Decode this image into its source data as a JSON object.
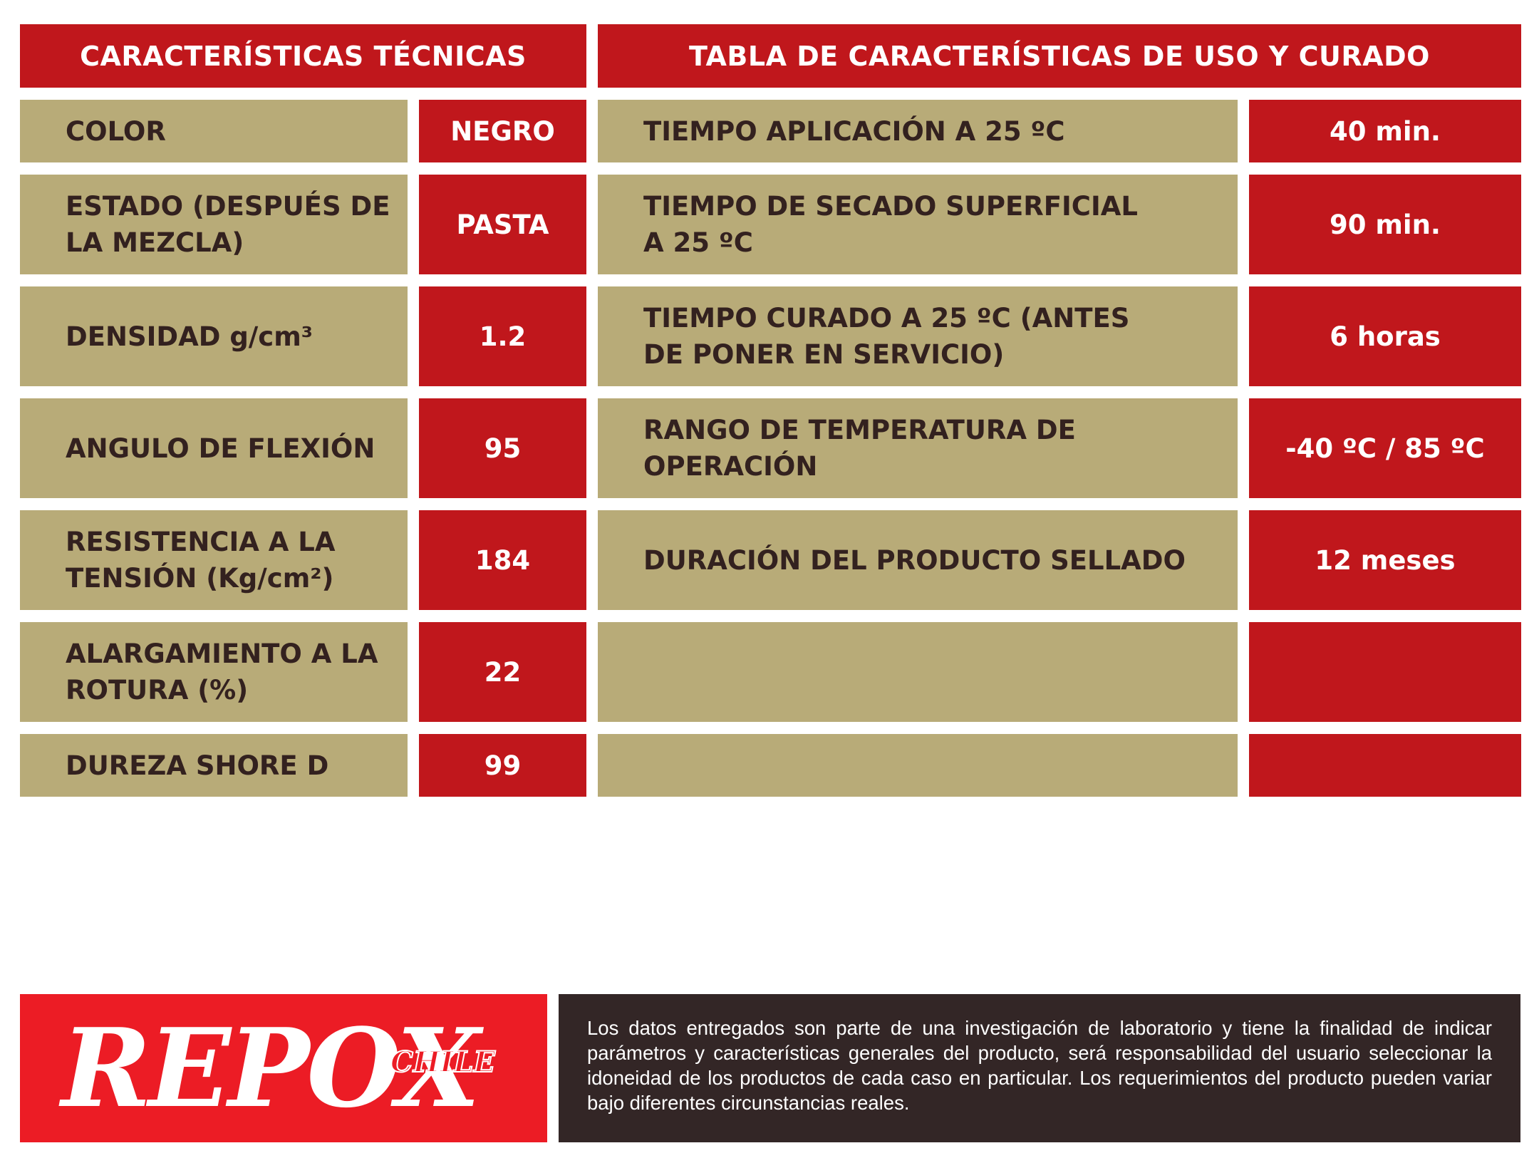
{
  "left_table": {
    "header": "CARACTERÍSTICAS TÉCNICAS",
    "rows": [
      {
        "label": "COLOR",
        "value": "NEGRO"
      },
      {
        "label": "ESTADO (DESPUÉS DE LA MEZCLA)",
        "value": "PASTA"
      },
      {
        "label_prefix": "DENSIDAD ",
        "label_unit": "g/cm³",
        "value": "1.2"
      },
      {
        "label": "ANGULO DE FLEXIÓN",
        "value": "95"
      },
      {
        "label_prefix": "RESISTENCIA A LA TENSIÓN ",
        "label_unit": "(Kg/cm²)",
        "value": "184"
      },
      {
        "label": "ALARGAMIENTO A LA ROTURA (%)",
        "value": "22"
      },
      {
        "label": "DUREZA SHORE D",
        "value": "99"
      }
    ]
  },
  "right_table": {
    "header": "TABLA DE CARACTERÍSTICAS DE USO Y CURADO",
    "rows": [
      {
        "label": "TIEMPO APLICACIÓN A 25 ºC",
        "value": "40 min."
      },
      {
        "label": "TIEMPO DE SECADO SUPERFICIAL A 25 ºC",
        "value": "90 min."
      },
      {
        "label": "TIEMPO CURADO A 25 ºC (ANTES DE PONER EN SERVICIO)",
        "value": "6 horas"
      },
      {
        "label": "RANGO DE TEMPERATURA DE OPERACIÓN",
        "value": "-40 ºC / 85 ºC"
      },
      {
        "label": "DURACIÓN DEL PRODUCTO SELLADO",
        "value": "12 meses"
      },
      {
        "label": "",
        "value": ""
      },
      {
        "label": "",
        "value": ""
      }
    ]
  },
  "logo": {
    "main": "REPOX",
    "sub": "CHILE"
  },
  "disclaimer": "Los datos entregados son parte de una investigación de laboratorio y tiene la finalidad de indicar parámetros y características generales del producto, será responsabilidad del usuario seleccionar la idoneidad de los productos de cada caso en particular. Los requerimientos del producto pueden variar bajo diferentes circunstancias reales.",
  "colors": {
    "red": "#c0171c",
    "gold": "#b8ab78",
    "dark": "#332626",
    "logo_red": "#ec1c25",
    "text_dark": "#33211f"
  }
}
